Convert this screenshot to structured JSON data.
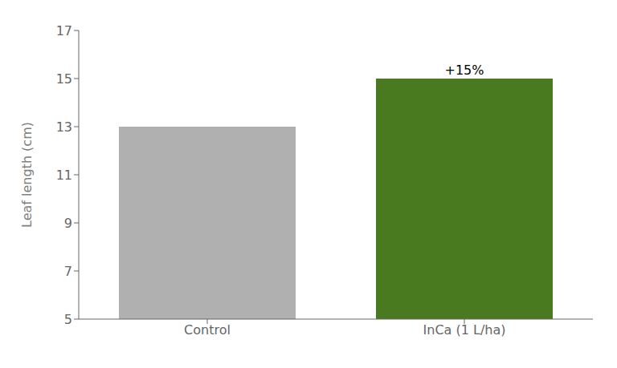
{
  "chart_data": {
    "type": "bar",
    "categories": [
      "Control",
      "InCa (1 L/ha)"
    ],
    "values": [
      13,
      15
    ],
    "colors": [
      "#b0b0b0",
      "#4a7a20"
    ],
    "ylabel": "Leaf length (cm)",
    "ylim": [
      5,
      17
    ],
    "yticks": [
      5,
      7,
      9,
      11,
      13,
      15,
      17
    ],
    "annotations": [
      {
        "text": "+15%",
        "category": "InCa (1 L/ha)"
      }
    ],
    "grid": false
  }
}
